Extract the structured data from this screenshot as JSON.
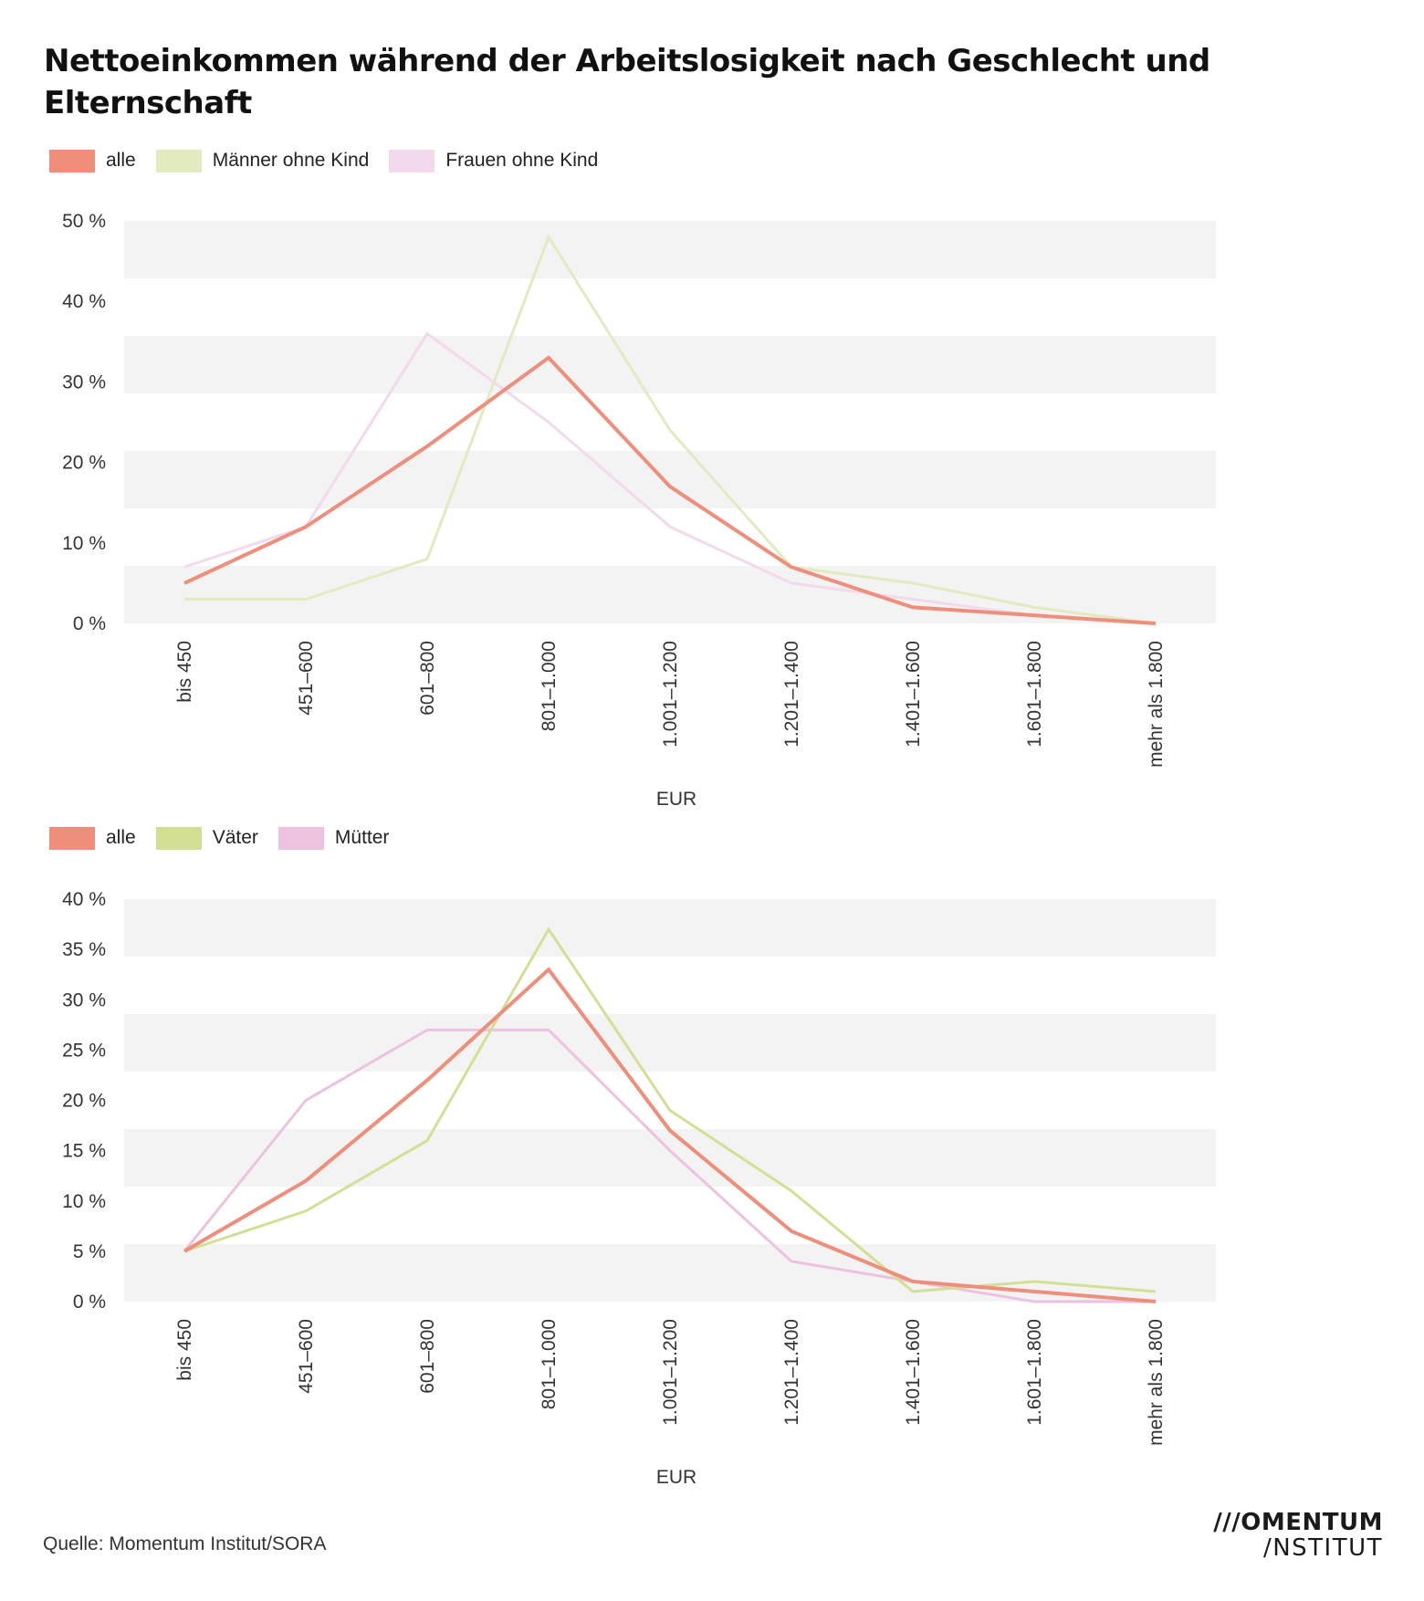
{
  "title": "Nettoeinkommen während der Arbeitslosigkeit nach Geschlecht und Elternschaft",
  "source": "Quelle: Momentum Institut/SORA",
  "logo": {
    "line1": "///OMENTUM",
    "line2": "/NSTITUT"
  },
  "chart_data": [
    {
      "type": "line",
      "title": "",
      "xlabel": "EUR",
      "ylabel": "",
      "ylim": [
        0,
        50
      ],
      "yticks": [
        0,
        10,
        20,
        30,
        40,
        50
      ],
      "ytick_labels": [
        "0 %",
        "10 %",
        "20 %",
        "30 %",
        "40 %",
        "50 %"
      ],
      "grid": "alternating horizontal bands",
      "legend_position": "top-left",
      "categories": [
        "bis 450",
        "451–600",
        "601–800",
        "801–1.000",
        "1.001–1.200",
        "1.201–1.400",
        "1.401–1.600",
        "1.601–1.800",
        "mehr als 1.800"
      ],
      "series": [
        {
          "name": "Frauen ohne Kind",
          "color": "#F3D9EC",
          "values": [
            7,
            12,
            36,
            25,
            12,
            5,
            3,
            1,
            0
          ]
        },
        {
          "name": "Männer ohne Kind",
          "color": "#E2EBC0",
          "values": [
            3,
            3,
            8,
            48,
            24,
            7,
            5,
            2,
            0
          ]
        },
        {
          "name": "alle",
          "color": "#EE8E7B",
          "values": [
            5,
            12,
            22,
            33,
            17,
            7,
            2,
            1,
            0
          ]
        }
      ],
      "legend_order": [
        "alle",
        "Männer ohne Kind",
        "Frauen ohne Kind"
      ]
    },
    {
      "type": "line",
      "title": "",
      "xlabel": "EUR",
      "ylabel": "",
      "ylim": [
        0,
        40
      ],
      "yticks": [
        0,
        5,
        10,
        15,
        20,
        25,
        30,
        35,
        40
      ],
      "ytick_labels": [
        "0 %",
        "5 %",
        "10 %",
        "15 %",
        "20 %",
        "25 %",
        "30 %",
        "35 %",
        "40 %"
      ],
      "grid": "alternating horizontal bands",
      "legend_position": "top-left",
      "categories": [
        "bis 450",
        "451–600",
        "601–800",
        "801–1.000",
        "1.001–1.200",
        "1.201–1.400",
        "1.401–1.600",
        "1.601–1.800",
        "mehr als 1.800"
      ],
      "series": [
        {
          "name": "Mütter",
          "color": "#EDC2DF",
          "values": [
            5,
            20,
            27,
            27,
            15,
            4,
            2,
            0,
            0
          ]
        },
        {
          "name": "Väter",
          "color": "#D3DF92",
          "values": [
            5,
            9,
            16,
            37,
            19,
            11,
            1,
            2,
            1
          ]
        },
        {
          "name": "alle",
          "color": "#EE8E7B",
          "values": [
            5,
            12,
            22,
            33,
            17,
            7,
            2,
            1,
            0
          ]
        }
      ],
      "legend_order": [
        "alle",
        "Väter",
        "Mütter"
      ]
    }
  ]
}
